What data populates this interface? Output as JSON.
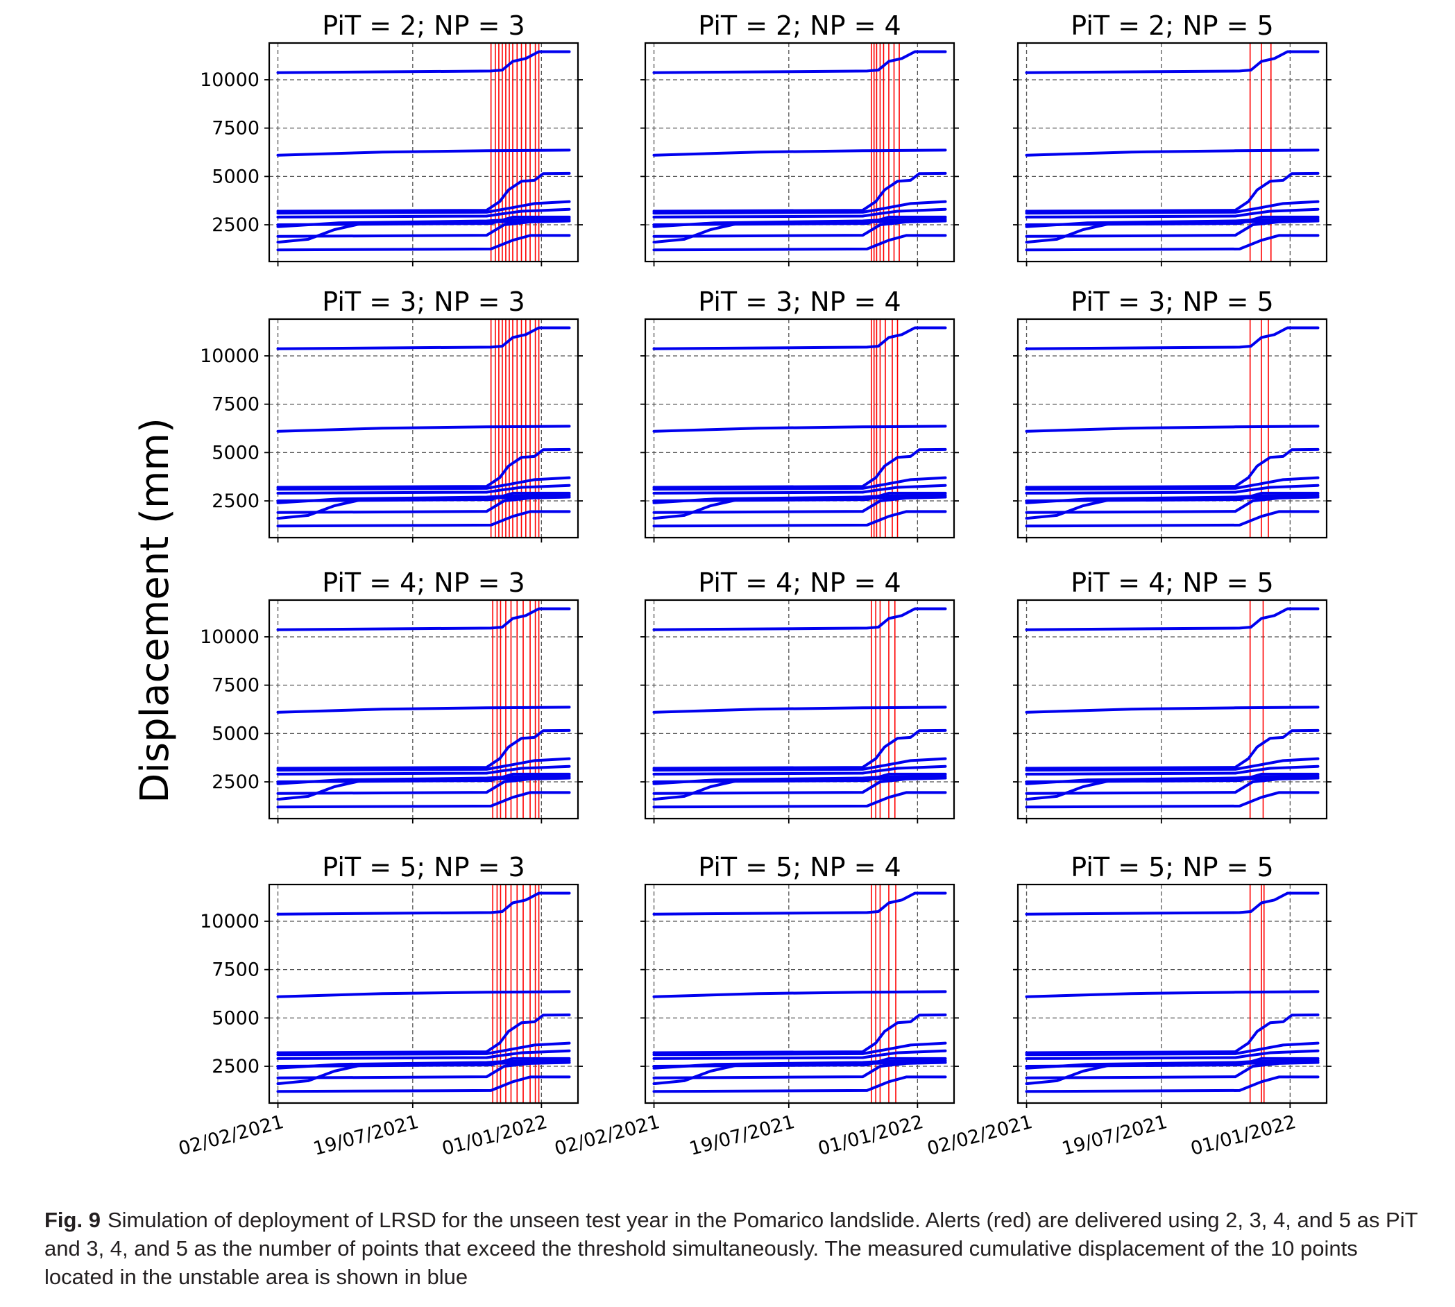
{
  "figure": {
    "ylabel": "Displacement (mm)",
    "caption_label": "Fig. 9",
    "caption_text": "Simulation of deployment of LRSD for the unseen test year in the Pomarico landslide. Alerts (red) are delivered using 2, 3, 4, and 5 as PiT and 3, 4, and 5 as the number of points that exceed the threshold simultaneously. The measured cumulative displacement of the 10 points located in the unstable area is shown in blue"
  },
  "colors": {
    "series": "#0000ee",
    "alerts": "#ff0000",
    "grid": "#555555",
    "axis": "#000000"
  },
  "chart_data": {
    "type": "line",
    "layout": "4x3 grid of subplots",
    "xlabel": "",
    "ylabel": "Displacement (mm)",
    "x_range_days": [
      -10,
      345
    ],
    "x_tick_days": [
      0,
      155,
      303
    ],
    "x_tick_labels": [
      "02/02/2021",
      "19/07/2021",
      "01/01/2022"
    ],
    "ylim": [
      600,
      11900
    ],
    "y_ticks": [
      2500,
      5000,
      7500,
      10000
    ],
    "grid": "dashed",
    "series": [
      {
        "name": "point 1",
        "values": [
          [
            0,
            10370
          ],
          [
            245,
            10450
          ],
          [
            258,
            10500
          ],
          [
            270,
            10950
          ],
          [
            285,
            11100
          ],
          [
            300,
            11450
          ],
          [
            335,
            11450
          ]
        ]
      },
      {
        "name": "point 2",
        "values": [
          [
            0,
            6100
          ],
          [
            120,
            6260
          ],
          [
            240,
            6330
          ],
          [
            335,
            6360
          ]
        ]
      },
      {
        "name": "point 3",
        "values": [
          [
            0,
            3200
          ],
          [
            240,
            3250
          ],
          [
            255,
            3700
          ],
          [
            265,
            4300
          ],
          [
            280,
            4750
          ],
          [
            295,
            4800
          ],
          [
            305,
            5150
          ],
          [
            335,
            5160
          ]
        ]
      },
      {
        "name": "point 4",
        "values": [
          [
            0,
            3100
          ],
          [
            240,
            3150
          ],
          [
            265,
            3350
          ],
          [
            295,
            3600
          ],
          [
            335,
            3700
          ]
        ]
      },
      {
        "name": "point 5",
        "values": [
          [
            0,
            2900
          ],
          [
            240,
            2950
          ],
          [
            255,
            3050
          ],
          [
            280,
            3200
          ],
          [
            335,
            3300
          ]
        ]
      },
      {
        "name": "point 6",
        "values": [
          [
            0,
            2500
          ],
          [
            245,
            2570
          ],
          [
            270,
            2900
          ],
          [
            335,
            2900
          ]
        ]
      },
      {
        "name": "point 7",
        "values": [
          [
            0,
            2400
          ],
          [
            70,
            2600
          ],
          [
            240,
            2700
          ],
          [
            260,
            2750
          ],
          [
            335,
            2800
          ]
        ]
      },
      {
        "name": "point 8",
        "values": [
          [
            0,
            1900
          ],
          [
            240,
            1960
          ],
          [
            260,
            2500
          ],
          [
            290,
            2650
          ],
          [
            335,
            2700
          ]
        ]
      },
      {
        "name": "point 9",
        "values": [
          [
            0,
            1600
          ],
          [
            35,
            1750
          ],
          [
            65,
            2250
          ],
          [
            100,
            2600
          ],
          [
            240,
            2650
          ],
          [
            335,
            2700
          ]
        ]
      },
      {
        "name": "point 10",
        "values": [
          [
            0,
            1200
          ],
          [
            245,
            1250
          ],
          [
            270,
            1700
          ],
          [
            290,
            1950
          ],
          [
            335,
            1950
          ]
        ]
      }
    ],
    "panels": [
      {
        "title": "PiT = 2; NP = 3",
        "alerts_days": [
          245,
          250,
          254,
          258,
          262,
          266,
          270,
          275,
          280,
          285,
          290,
          296,
          300
        ]
      },
      {
        "title": "PiT = 2; NP = 4",
        "alerts_days": [
          250,
          253,
          256,
          260,
          264,
          270,
          276,
          282
        ]
      },
      {
        "title": "PiT = 2; NP = 5",
        "alerts_days": [
          257,
          270,
          281
        ]
      },
      {
        "title": "PiT = 3; NP = 3",
        "alerts_days": [
          245,
          250,
          254,
          258,
          262,
          266,
          270,
          275,
          280,
          285,
          290,
          296,
          300
        ]
      },
      {
        "title": "PiT = 3; NP = 4",
        "alerts_days": [
          250,
          253,
          256,
          260,
          266,
          274,
          280
        ]
      },
      {
        "title": "PiT = 3; NP = 5",
        "alerts_days": [
          257,
          270,
          278
        ]
      },
      {
        "title": "PiT = 4; NP = 3",
        "alerts_days": [
          247,
          252,
          256,
          262,
          268,
          275,
          282,
          290,
          296,
          300
        ]
      },
      {
        "title": "PiT = 4; NP = 4",
        "alerts_days": [
          250,
          255,
          260,
          270,
          277
        ]
      },
      {
        "title": "PiT = 4; NP = 5",
        "alerts_days": [
          257,
          272
        ]
      },
      {
        "title": "PiT = 5; NP = 3",
        "alerts_days": [
          247,
          252,
          256,
          262,
          268,
          275,
          282,
          290,
          296,
          300
        ]
      },
      {
        "title": "PiT = 5; NP = 4",
        "alerts_days": [
          250,
          255,
          260,
          270,
          278
        ]
      },
      {
        "title": "PiT = 5; NP = 5",
        "alerts_days": [
          257,
          270,
          273
        ]
      }
    ]
  }
}
